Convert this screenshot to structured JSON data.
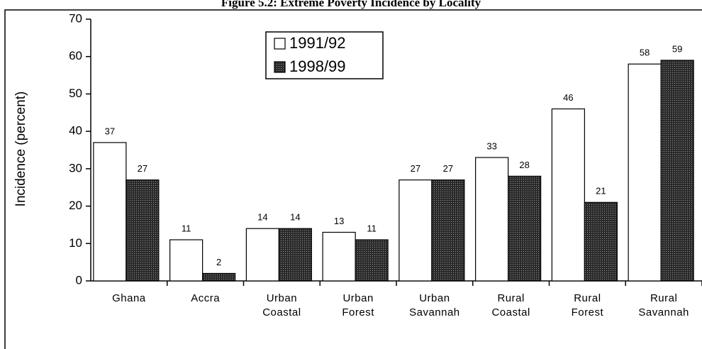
{
  "chart_data": {
    "type": "bar",
    "title": "Figure 5.2: Extreme Poverty Incidence by Locality",
    "y_label": "Incidence (percent)",
    "categories": [
      "Ghana",
      "Accra",
      "Urban Coastal",
      "Urban Forest",
      "Urban Savannah",
      "Rural Coastal",
      "Rural Forest",
      "Rural Savannah"
    ],
    "series": [
      {
        "name": "1991/92",
        "color": "#ffffff",
        "values": [
          37,
          11,
          14,
          13,
          27,
          33,
          46,
          58
        ]
      },
      {
        "name": "1998/99",
        "color": "#3a3a3a",
        "values": [
          27,
          2,
          14,
          11,
          27,
          28,
          21,
          59
        ]
      }
    ],
    "ylim": [
      0,
      70
    ],
    "yticks": [
      0,
      10,
      20,
      30,
      40,
      50,
      60,
      70
    ]
  }
}
